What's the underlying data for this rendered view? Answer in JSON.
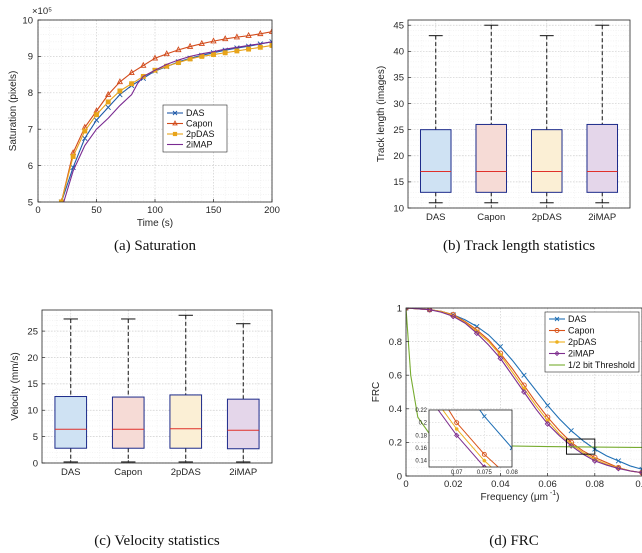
{
  "chart_data": [
    {
      "id": "a",
      "type": "line",
      "caption": "(a) Saturation",
      "xlabel": "Time (s)",
      "ylabel": "Saturation (pixels)",
      "multiplier": "×10⁵",
      "xlim": [
        0,
        200
      ],
      "ylim": [
        5,
        10
      ],
      "xticks": [
        "0",
        "50",
        "100",
        "150",
        "200"
      ],
      "yticks": [
        "5",
        "6",
        "7",
        "8",
        "9",
        "10"
      ],
      "grid": true,
      "legend_position": "center-right",
      "series": [
        {
          "name": "DAS",
          "color": "#1f5aa8",
          "marker": "x",
          "x": [
            20,
            30,
            40,
            50,
            60,
            70,
            80,
            90,
            100,
            110,
            120,
            130,
            140,
            150,
            160,
            170,
            180,
            190,
            200
          ],
          "y": [
            5.0,
            5.95,
            6.75,
            7.25,
            7.6,
            7.95,
            8.2,
            8.4,
            8.6,
            8.72,
            8.85,
            8.95,
            9.03,
            9.1,
            9.17,
            9.23,
            9.28,
            9.34,
            9.4
          ]
        },
        {
          "name": "Capon",
          "color": "#d24b1b",
          "marker": "triangle",
          "x": [
            20,
            30,
            40,
            50,
            60,
            70,
            80,
            90,
            100,
            110,
            120,
            130,
            140,
            150,
            160,
            170,
            180,
            190,
            200
          ],
          "y": [
            5.0,
            6.35,
            7.05,
            7.5,
            7.95,
            8.3,
            8.55,
            8.75,
            8.95,
            9.07,
            9.18,
            9.27,
            9.35,
            9.42,
            9.48,
            9.53,
            9.57,
            9.62,
            9.68
          ]
        },
        {
          "name": "2pDAS",
          "color": "#e8a41a",
          "marker": "square",
          "x": [
            20,
            30,
            40,
            50,
            60,
            70,
            80,
            90,
            100,
            110,
            120,
            130,
            140,
            150,
            160,
            170,
            180,
            190,
            200
          ],
          "y": [
            5.0,
            6.25,
            6.95,
            7.4,
            7.75,
            8.05,
            8.25,
            8.45,
            8.62,
            8.73,
            8.83,
            8.93,
            9.0,
            9.05,
            9.1,
            9.15,
            9.2,
            9.25,
            9.3
          ]
        },
        {
          "name": "2iMAP",
          "color": "#7a2a91",
          "marker": "none",
          "x": [
            22,
            30,
            40,
            50,
            60,
            70,
            80,
            85,
            90,
            100,
            110,
            120,
            130,
            140,
            150,
            160,
            170,
            180,
            190,
            200
          ],
          "y": [
            5.0,
            5.85,
            6.55,
            7.0,
            7.3,
            7.65,
            7.95,
            8.25,
            8.45,
            8.62,
            8.78,
            8.9,
            9.0,
            9.07,
            9.13,
            9.2,
            9.25,
            9.3,
            9.35,
            9.4
          ]
        }
      ]
    },
    {
      "id": "b",
      "type": "box",
      "caption": "(b) Track length statistics",
      "ylabel": "Track length (images)",
      "ylim": [
        10,
        46
      ],
      "yticks": [
        "10",
        "15",
        "20",
        "25",
        "30",
        "35",
        "40",
        "45"
      ],
      "categories": [
        "DAS",
        "Capon",
        "2pDAS",
        "2iMAP"
      ],
      "boxes": [
        {
          "whisker_low": 11,
          "q1": 13,
          "median": 17,
          "q3": 25,
          "whisker_high": 43,
          "fill": "#cfe2f3"
        },
        {
          "whisker_low": 11,
          "q1": 13,
          "median": 17,
          "q3": 26,
          "whisker_high": 45,
          "fill": "#f6dbd6"
        },
        {
          "whisker_low": 11,
          "q1": 13,
          "median": 17,
          "q3": 25,
          "whisker_high": 43,
          "fill": "#fbefd5"
        },
        {
          "whisker_low": 11,
          "q1": 13,
          "median": 17,
          "q3": 26,
          "whisker_high": 45,
          "fill": "#e4d6ea"
        }
      ]
    },
    {
      "id": "c",
      "type": "box",
      "caption": "(c) Velocity statistics",
      "ylabel": "Velocity (mm/s)",
      "ylim": [
        0,
        29
      ],
      "yticks": [
        "0",
        "5",
        "10",
        "15",
        "20",
        "25"
      ],
      "categories": [
        "DAS",
        "Capon",
        "2pDAS",
        "2iMAP"
      ],
      "boxes": [
        {
          "whisker_low": 0.2,
          "q1": 2.8,
          "median": 6.4,
          "q3": 12.6,
          "whisker_high": 27.3,
          "fill": "#cfe2f3"
        },
        {
          "whisker_low": 0.2,
          "q1": 2.8,
          "median": 6.4,
          "q3": 12.5,
          "whisker_high": 27.3,
          "fill": "#f6dbd6"
        },
        {
          "whisker_low": 0.2,
          "q1": 2.8,
          "median": 6.5,
          "q3": 12.9,
          "whisker_high": 28.0,
          "fill": "#fbefd5"
        },
        {
          "whisker_low": 0.2,
          "q1": 2.7,
          "median": 6.2,
          "q3": 12.1,
          "whisker_high": 26.4,
          "fill": "#e4d6ea"
        }
      ]
    },
    {
      "id": "d",
      "type": "line",
      "caption": "(d) FRC",
      "xlabel": "Frequency (μm",
      "xlabel_sup": "-1",
      "xlabel_end": ")",
      "ylabel": "FRC",
      "xlim": [
        0,
        0.1
      ],
      "ylim": [
        0,
        1
      ],
      "xticks": [
        "0",
        "0.02",
        "0.04",
        "0.06",
        "0.08",
        "0.1"
      ],
      "yticks": [
        "0",
        "0.2",
        "0.4",
        "0.6",
        "0.8",
        "1"
      ],
      "grid": true,
      "legend_position": "top-right",
      "series": [
        {
          "name": "DAS",
          "color": "#1f6fb5",
          "marker": "x",
          "x": [
            0,
            0.005,
            0.01,
            0.015,
            0.02,
            0.025,
            0.03,
            0.035,
            0.04,
            0.045,
            0.05,
            0.055,
            0.06,
            0.065,
            0.07,
            0.075,
            0.08,
            0.085,
            0.09,
            0.095,
            0.1
          ],
          "y": [
            1.0,
            0.995,
            0.99,
            0.98,
            0.96,
            0.93,
            0.89,
            0.84,
            0.77,
            0.69,
            0.6,
            0.51,
            0.42,
            0.34,
            0.27,
            0.21,
            0.16,
            0.12,
            0.09,
            0.06,
            0.04
          ]
        },
        {
          "name": "Capon",
          "color": "#d9541a",
          "marker": "circle",
          "x": [
            0,
            0.005,
            0.01,
            0.015,
            0.02,
            0.025,
            0.03,
            0.035,
            0.04,
            0.045,
            0.05,
            0.055,
            0.06,
            0.065,
            0.07,
            0.075,
            0.08,
            0.085,
            0.09,
            0.095,
            0.1
          ],
          "y": [
            1.0,
            0.995,
            0.99,
            0.98,
            0.96,
            0.92,
            0.87,
            0.81,
            0.73,
            0.64,
            0.54,
            0.44,
            0.35,
            0.27,
            0.2,
            0.15,
            0.11,
            0.08,
            0.05,
            0.03,
            0.02
          ]
        },
        {
          "name": "2pDAS",
          "color": "#edb120",
          "marker": "dot",
          "x": [
            0,
            0.005,
            0.01,
            0.015,
            0.02,
            0.025,
            0.03,
            0.035,
            0.04,
            0.045,
            0.05,
            0.055,
            0.06,
            0.065,
            0.07,
            0.075,
            0.08,
            0.085,
            0.09,
            0.095,
            0.1
          ],
          "y": [
            1.0,
            0.995,
            0.99,
            0.98,
            0.955,
            0.915,
            0.86,
            0.8,
            0.72,
            0.62,
            0.52,
            0.42,
            0.33,
            0.25,
            0.19,
            0.14,
            0.1,
            0.07,
            0.05,
            0.03,
            0.02
          ]
        },
        {
          "name": "2iMAP",
          "color": "#7e2f8e",
          "marker": "diamond",
          "x": [
            0,
            0.005,
            0.01,
            0.015,
            0.02,
            0.025,
            0.03,
            0.035,
            0.04,
            0.045,
            0.05,
            0.055,
            0.06,
            0.065,
            0.07,
            0.075,
            0.08,
            0.085,
            0.09,
            0.095,
            0.1
          ],
          "y": [
            1.0,
            0.995,
            0.99,
            0.975,
            0.95,
            0.91,
            0.85,
            0.78,
            0.7,
            0.6,
            0.5,
            0.4,
            0.31,
            0.24,
            0.18,
            0.13,
            0.09,
            0.065,
            0.045,
            0.03,
            0.02
          ]
        },
        {
          "name": "1/2 bit Threshold",
          "color": "#77ac30",
          "marker": "none",
          "x": [
            0,
            0.002,
            0.005,
            0.01,
            0.02,
            0.04,
            0.06,
            0.08,
            0.1
          ],
          "y": [
            1.0,
            0.6,
            0.35,
            0.25,
            0.2,
            0.18,
            0.175,
            0.172,
            0.17
          ]
        }
      ],
      "inset": {
        "xlim": [
          0.065,
          0.08
        ],
        "ylim": [
          0.13,
          0.22
        ],
        "xticks": [
          "0.07",
          "0.075",
          "0.08"
        ],
        "yticks": [
          "0.14",
          "0.16",
          "0.18",
          "0.2",
          "0.22"
        ],
        "zoom_box": {
          "x": [
            0.068,
            0.08
          ],
          "y": [
            0.13,
            0.22
          ]
        }
      }
    }
  ]
}
